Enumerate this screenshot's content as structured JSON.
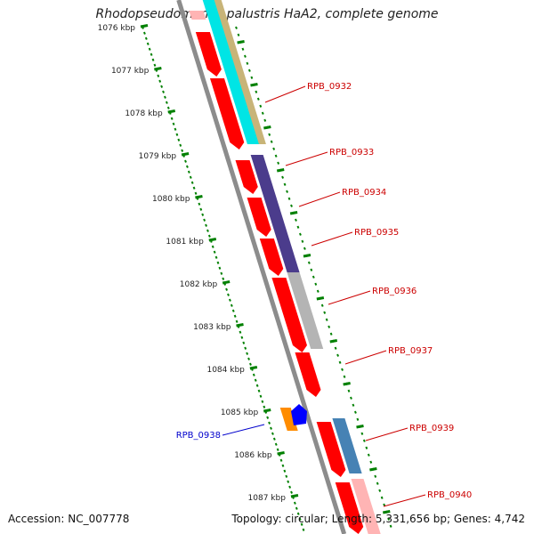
{
  "title": "Rhodopseudomonas palustris HaA2, complete genome",
  "accession": "Accession: NC_007778",
  "summary": "Topology: circular; Length: 5,331,656 bp; Genes: 4,742",
  "ticks": [
    "1076 kbp",
    "1077 kbp",
    "1078 kbp",
    "1079 kbp",
    "1080 kbp",
    "1081 kbp",
    "1082 kbp",
    "1083 kbp",
    "1084 kbp",
    "1085 kbp",
    "1086 kbp",
    "1087 kbp"
  ],
  "gene_labels": [
    {
      "text": "RPB_0932",
      "strand": "forward"
    },
    {
      "text": "RPB_0933",
      "strand": "forward"
    },
    {
      "text": "RPB_0934",
      "strand": "forward"
    },
    {
      "text": "RPB_0935",
      "strand": "forward"
    },
    {
      "text": "RPB_0936",
      "strand": "forward"
    },
    {
      "text": "RPB_0937",
      "strand": "forward"
    },
    {
      "text": "RPB_0938",
      "strand": "reverse"
    },
    {
      "text": "RPB_0939",
      "strand": "forward"
    },
    {
      "text": "RPB_0940",
      "strand": "forward"
    }
  ],
  "colors": {
    "forward_label": "#cc0000",
    "reverse_label": "#0000cc",
    "cds_red": "#ff0000",
    "cds_pink": "#ffb4b4",
    "backbone": "#8c8c8c",
    "scale": "#008000",
    "cyan": "#00e5e5",
    "tan": "#c8b478",
    "navy": "#4b3c8c",
    "gray": "#b4b4b4",
    "steel": "#4682b4",
    "orange": "#ff8c00",
    "blue": "#0000ff"
  }
}
